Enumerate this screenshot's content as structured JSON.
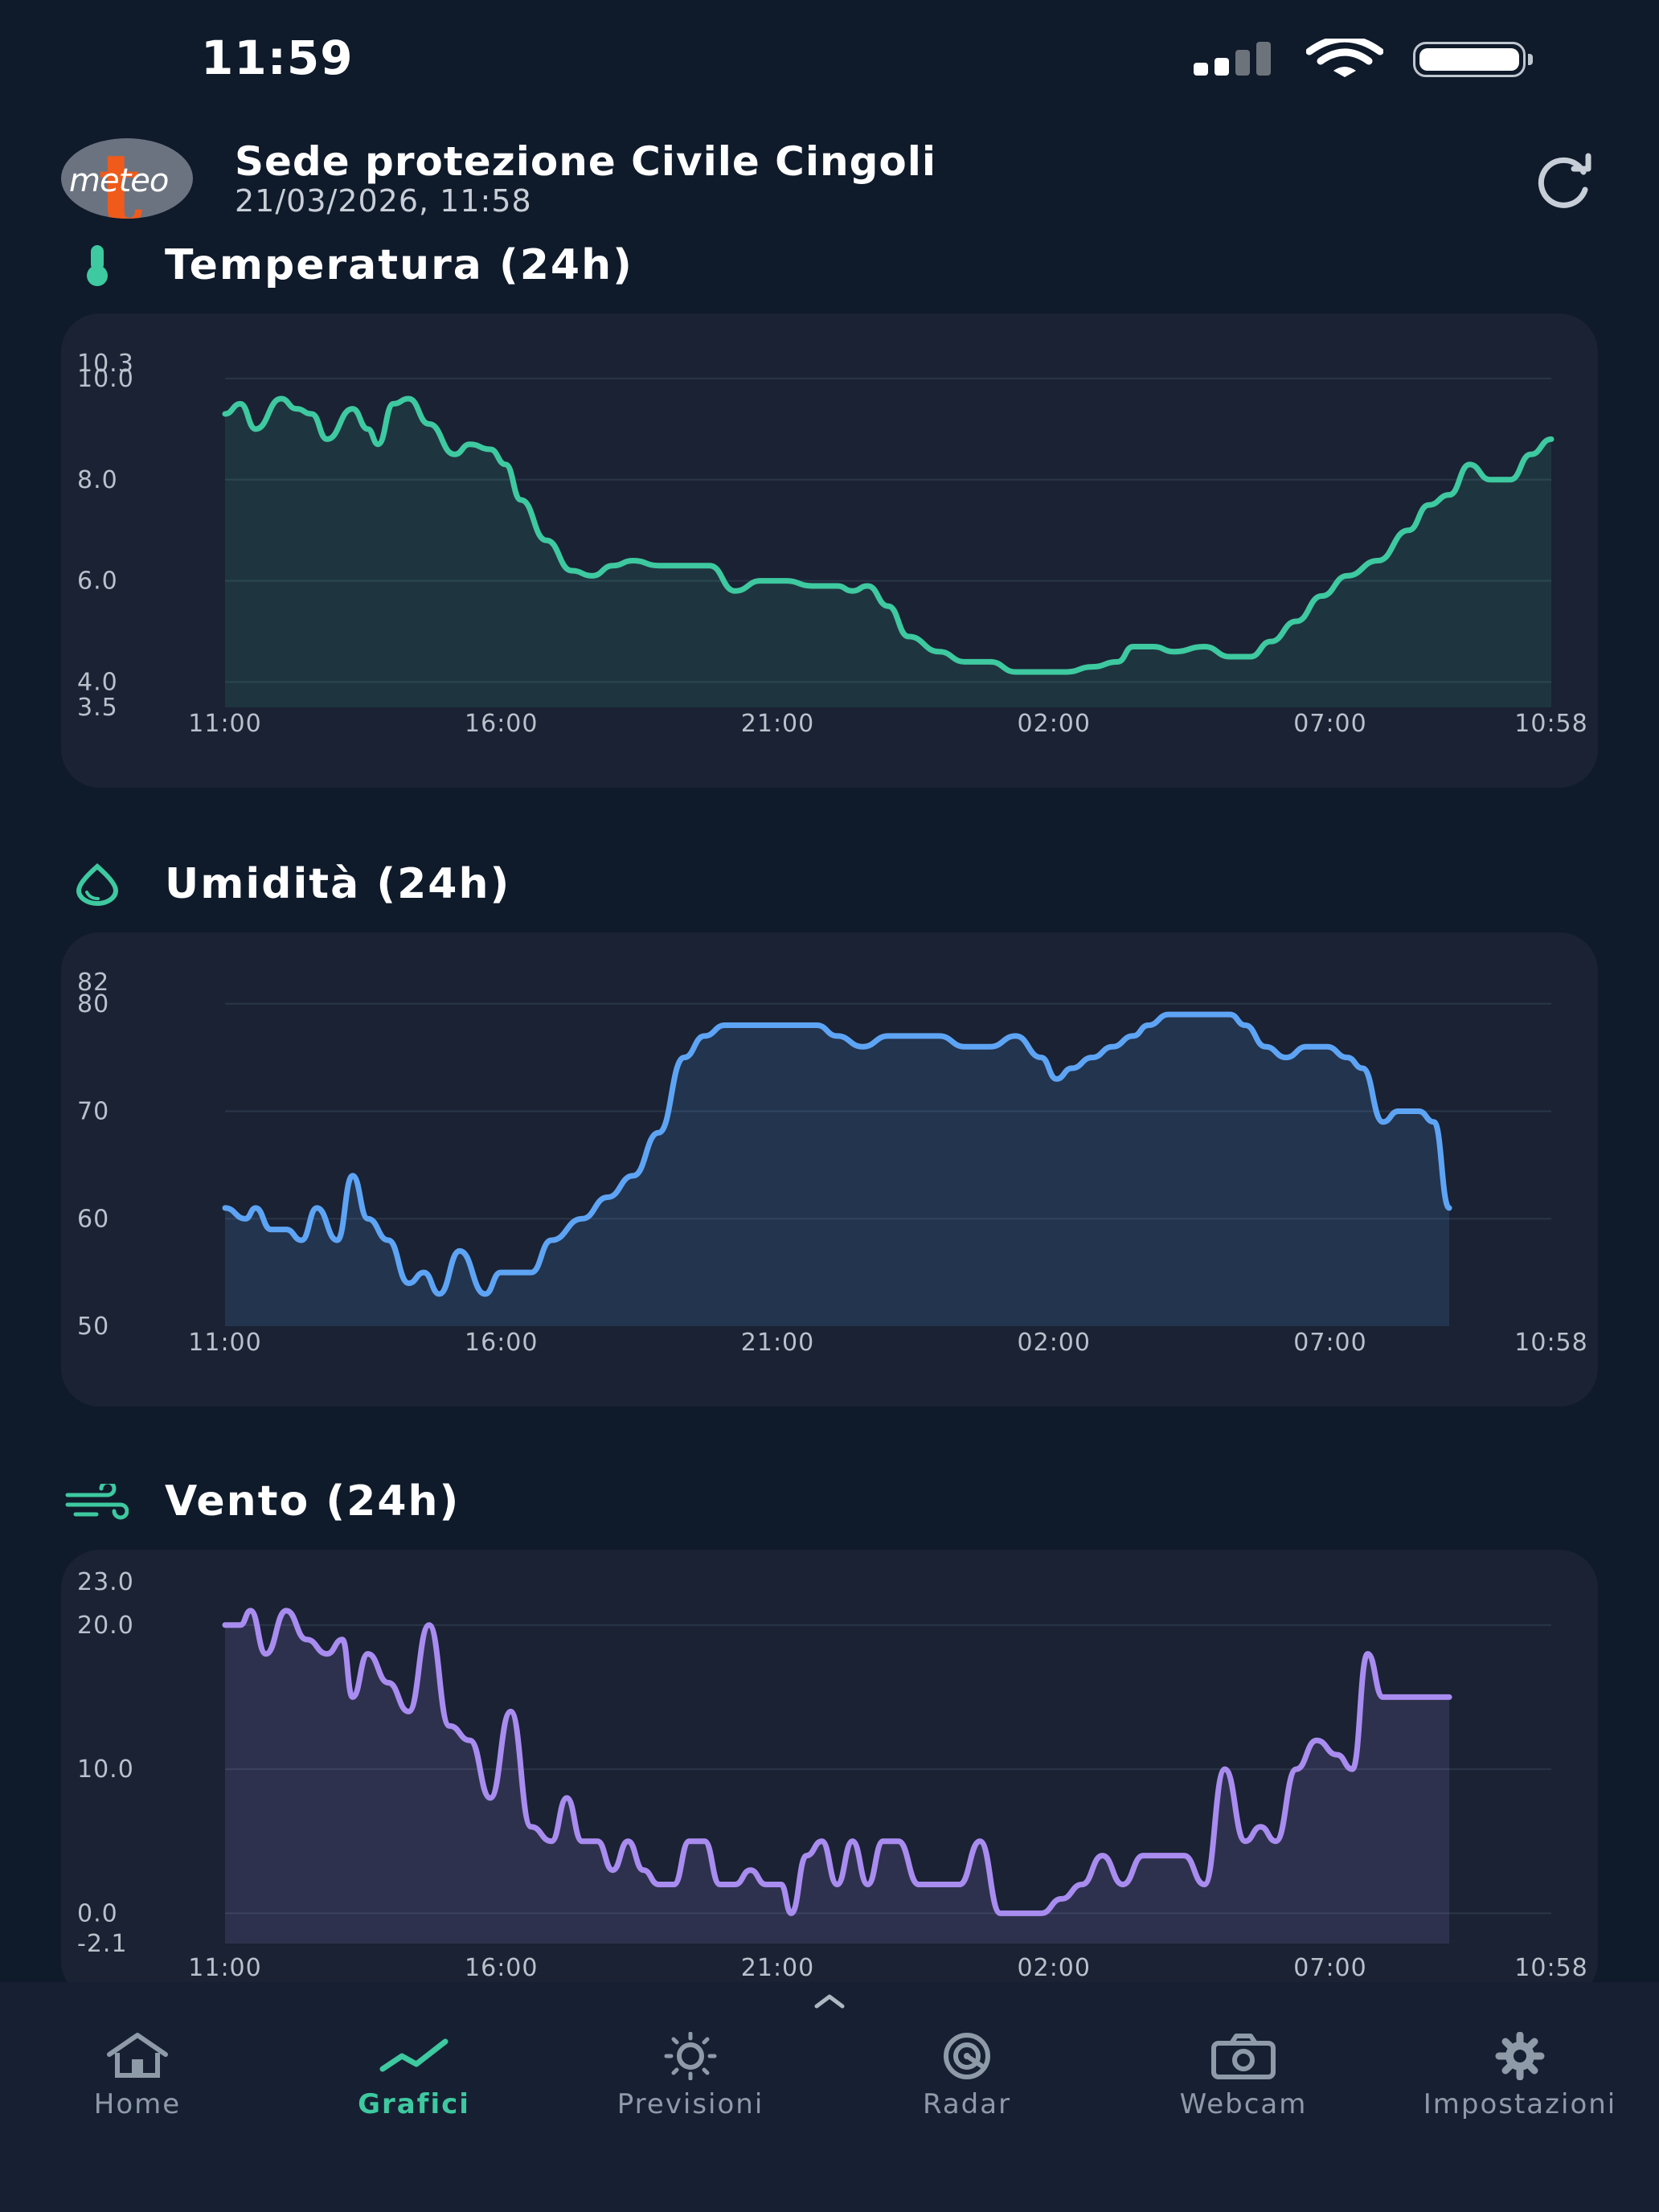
{
  "status_bar": {
    "time": "11:59"
  },
  "header": {
    "logo_text": "meteo",
    "station_name": "Sede protezione Civile Cingoli",
    "datetime": "21/03/2026, 11:58"
  },
  "sections": {
    "temperature": {
      "title": "Temperatura (24h)"
    },
    "humidity": {
      "title": "Umidità (24h)"
    },
    "wind": {
      "title": "Vento (24h)"
    }
  },
  "nav": {
    "items": [
      {
        "label": "Home",
        "icon": "home-icon",
        "active": false
      },
      {
        "label": "Grafici",
        "icon": "chart-icon",
        "active": true
      },
      {
        "label": "Previsioni",
        "icon": "sun-icon",
        "active": false
      },
      {
        "label": "Radar",
        "icon": "radar-icon",
        "active": false
      },
      {
        "label": "Webcam",
        "icon": "camera-icon",
        "active": false
      },
      {
        "label": "Impostazioni",
        "icon": "gear-icon",
        "active": false
      }
    ]
  },
  "colors": {
    "temperature": "#3ec9a0",
    "humidity": "#5ea4f5",
    "wind": "#a98cf0",
    "accent": "#3ec9a0"
  },
  "chart_data": [
    {
      "type": "area",
      "x_tick_labels": [
        "11:00",
        "16:00",
        "21:00",
        "02:00",
        "07:00",
        "10:58"
      ],
      "y_tick_labels": [
        "3.5",
        "4.0",
        "6.0",
        "8.0",
        "10.0",
        "10.3"
      ],
      "ylim": [
        3.5,
        10.3
      ],
      "x_range_hours": [
        0,
        24
      ],
      "series": [
        {
          "values": [
            [
              0,
              9.3
            ],
            [
              0.3,
              9.5
            ],
            [
              0.6,
              9.0
            ],
            [
              1.1,
              9.6
            ],
            [
              1.4,
              9.4
            ],
            [
              1.7,
              9.3
            ],
            [
              2.0,
              8.8
            ],
            [
              2.5,
              9.4
            ],
            [
              2.8,
              9.0
            ],
            [
              3.0,
              8.7
            ],
            [
              3.3,
              9.5
            ],
            [
              3.6,
              9.6
            ],
            [
              4.0,
              9.1
            ],
            [
              4.5,
              8.5
            ],
            [
              4.8,
              8.7
            ],
            [
              5.2,
              8.6
            ],
            [
              5.5,
              8.3
            ],
            [
              5.8,
              7.6
            ],
            [
              6.3,
              6.8
            ],
            [
              6.8,
              6.2
            ],
            [
              7.2,
              6.1
            ],
            [
              7.6,
              6.3
            ],
            [
              8.0,
              6.4
            ],
            [
              8.5,
              6.3
            ],
            [
              9.0,
              6.3
            ],
            [
              9.5,
              6.3
            ],
            [
              10.0,
              5.8
            ],
            [
              10.5,
              6.0
            ],
            [
              11.0,
              6.0
            ],
            [
              11.5,
              5.9
            ],
            [
              12.0,
              5.9
            ],
            [
              12.3,
              5.8
            ],
            [
              12.6,
              5.9
            ],
            [
              13.0,
              5.5
            ],
            [
              13.4,
              4.9
            ],
            [
              14.0,
              4.6
            ],
            [
              14.5,
              4.4
            ],
            [
              15.0,
              4.4
            ],
            [
              15.5,
              4.2
            ],
            [
              16.0,
              4.2
            ],
            [
              16.5,
              4.2
            ],
            [
              17.0,
              4.3
            ],
            [
              17.5,
              4.4
            ],
            [
              17.8,
              4.7
            ],
            [
              18.2,
              4.7
            ],
            [
              18.6,
              4.6
            ],
            [
              19.2,
              4.7
            ],
            [
              19.7,
              4.5
            ],
            [
              20.1,
              4.5
            ],
            [
              20.5,
              4.8
            ],
            [
              21.0,
              5.2
            ],
            [
              21.5,
              5.7
            ],
            [
              22.0,
              6.1
            ],
            [
              22.6,
              6.4
            ],
            [
              23.2,
              7.0
            ],
            [
              23.6,
              7.5
            ],
            [
              24.0,
              7.7
            ],
            [
              24.4,
              8.3
            ],
            [
              24.8,
              8.0
            ],
            [
              25.2,
              8.0
            ],
            [
              25.6,
              8.5
            ],
            [
              26.0,
              8.8
            ]
          ]
        }
      ]
    },
    {
      "type": "area",
      "x_tick_labels": [
        "11:00",
        "16:00",
        "21:00",
        "02:00",
        "07:00",
        "10:58"
      ],
      "y_tick_labels": [
        "50",
        "60",
        "70",
        "80",
        "82"
      ],
      "ylim": [
        50,
        82
      ],
      "x_range_hours": [
        0,
        24
      ],
      "series": [
        {
          "values": [
            [
              0,
              61
            ],
            [
              0.4,
              60
            ],
            [
              0.6,
              61
            ],
            [
              0.9,
              59
            ],
            [
              1.2,
              59
            ],
            [
              1.5,
              58
            ],
            [
              1.8,
              61
            ],
            [
              2.2,
              58
            ],
            [
              2.5,
              64
            ],
            [
              2.8,
              60
            ],
            [
              3.2,
              58
            ],
            [
              3.6,
              54
            ],
            [
              3.9,
              55
            ],
            [
              4.2,
              53
            ],
            [
              4.6,
              57
            ],
            [
              5.1,
              53
            ],
            [
              5.4,
              55
            ],
            [
              6.0,
              55
            ],
            [
              6.4,
              58
            ],
            [
              7.0,
              60
            ],
            [
              7.5,
              62
            ],
            [
              8.0,
              64
            ],
            [
              8.5,
              68
            ],
            [
              9.0,
              75
            ],
            [
              9.4,
              77
            ],
            [
              9.8,
              78
            ],
            [
              10.3,
              78
            ],
            [
              10.8,
              78
            ],
            [
              11.2,
              78
            ],
            [
              11.6,
              78
            ],
            [
              12.0,
              77
            ],
            [
              12.5,
              76
            ],
            [
              13.0,
              77
            ],
            [
              13.5,
              77
            ],
            [
              14.0,
              77
            ],
            [
              14.5,
              76
            ],
            [
              15.0,
              76
            ],
            [
              15.5,
              77
            ],
            [
              16.0,
              75
            ],
            [
              16.3,
              73
            ],
            [
              16.6,
              74
            ],
            [
              17.0,
              75
            ],
            [
              17.4,
              76
            ],
            [
              17.8,
              77
            ],
            [
              18.1,
              78
            ],
            [
              18.5,
              79
            ],
            [
              18.9,
              79
            ],
            [
              19.3,
              79
            ],
            [
              19.7,
              79
            ],
            [
              20.0,
              78
            ],
            [
              20.4,
              76
            ],
            [
              20.8,
              75
            ],
            [
              21.2,
              76
            ],
            [
              21.6,
              76
            ],
            [
              22.0,
              75
            ],
            [
              22.3,
              74
            ],
            [
              22.7,
              69
            ],
            [
              23.0,
              70
            ],
            [
              23.4,
              70
            ],
            [
              23.7,
              69
            ],
            [
              24.0,
              61
            ]
          ]
        }
      ]
    },
    {
      "type": "area",
      "x_tick_labels": [
        "11:00",
        "16:00",
        "21:00",
        "02:00",
        "07:00",
        "10:58"
      ],
      "y_tick_labels": [
        "-2.1",
        "0.0",
        "10.0",
        "20.0",
        "23.0"
      ],
      "ylim": [
        -2.1,
        23.0
      ],
      "x_range_hours": [
        0,
        24
      ],
      "series": [
        {
          "values": [
            [
              0,
              20
            ],
            [
              0.3,
              20
            ],
            [
              0.5,
              21
            ],
            [
              0.8,
              18
            ],
            [
              1.2,
              21
            ],
            [
              1.6,
              19
            ],
            [
              2.0,
              18
            ],
            [
              2.3,
              19
            ],
            [
              2.5,
              15
            ],
            [
              2.8,
              18
            ],
            [
              3.2,
              16
            ],
            [
              3.6,
              14
            ],
            [
              4.0,
              20
            ],
            [
              4.4,
              13
            ],
            [
              4.8,
              12
            ],
            [
              5.2,
              8
            ],
            [
              5.6,
              14
            ],
            [
              6.0,
              6
            ],
            [
              6.4,
              5
            ],
            [
              6.7,
              8
            ],
            [
              7.0,
              5
            ],
            [
              7.3,
              5
            ],
            [
              7.6,
              3
            ],
            [
              7.9,
              5
            ],
            [
              8.2,
              3
            ],
            [
              8.5,
              2
            ],
            [
              8.8,
              2
            ],
            [
              9.1,
              5
            ],
            [
              9.4,
              5
            ],
            [
              9.7,
              2
            ],
            [
              10.0,
              2
            ],
            [
              10.3,
              3
            ],
            [
              10.6,
              2
            ],
            [
              10.9,
              2
            ],
            [
              11.1,
              0
            ],
            [
              11.4,
              4
            ],
            [
              11.7,
              5
            ],
            [
              12.0,
              2
            ],
            [
              12.3,
              5
            ],
            [
              12.6,
              2
            ],
            [
              12.9,
              5
            ],
            [
              13.2,
              5
            ],
            [
              13.6,
              2
            ],
            [
              14.0,
              2
            ],
            [
              14.4,
              2
            ],
            [
              14.8,
              5
            ],
            [
              15.2,
              0
            ],
            [
              15.6,
              0
            ],
            [
              16.0,
              0
            ],
            [
              16.4,
              1
            ],
            [
              16.8,
              2
            ],
            [
              17.2,
              4
            ],
            [
              17.6,
              2
            ],
            [
              18.0,
              4
            ],
            [
              18.4,
              4
            ],
            [
              18.8,
              4
            ],
            [
              19.2,
              2
            ],
            [
              19.6,
              10
            ],
            [
              20.0,
              5
            ],
            [
              20.3,
              6
            ],
            [
              20.6,
              5
            ],
            [
              21.0,
              10
            ],
            [
              21.4,
              12
            ],
            [
              21.8,
              11
            ],
            [
              22.1,
              10
            ],
            [
              22.4,
              18
            ],
            [
              22.7,
              15
            ],
            [
              24.0,
              15
            ]
          ]
        }
      ]
    }
  ]
}
